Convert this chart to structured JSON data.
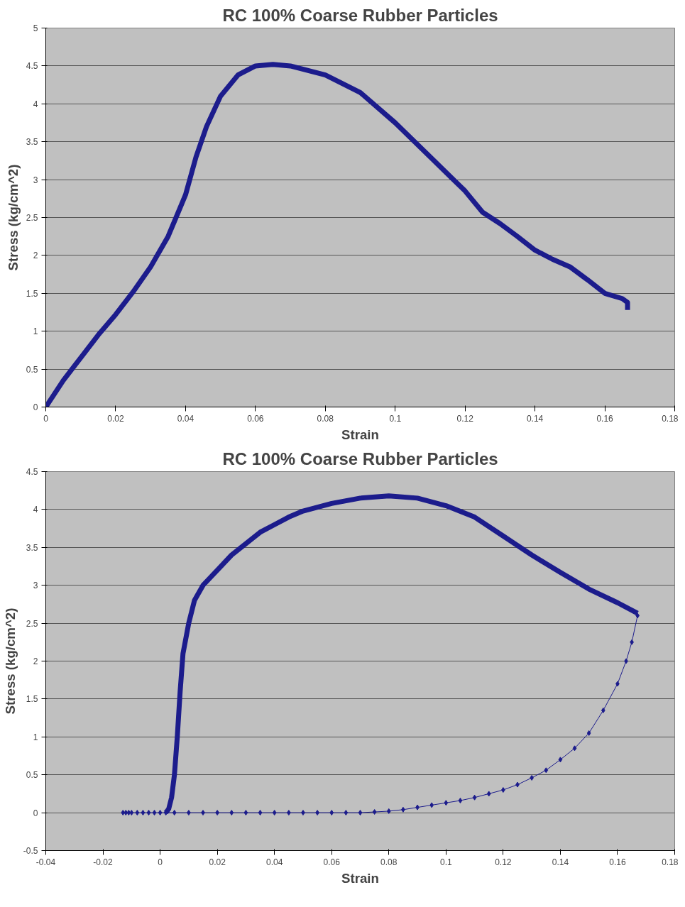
{
  "chart_data": [
    {
      "type": "line",
      "title": "RC 100% Coarse Rubber Particles",
      "xlabel": "Strain",
      "ylabel": "Stress (kg/cm^2)",
      "xlim": [
        0,
        0.18
      ],
      "ylim": [
        0,
        5
      ],
      "xticks": [
        0,
        0.02,
        0.04,
        0.06,
        0.08,
        0.1,
        0.12,
        0.14,
        0.16,
        0.18
      ],
      "yticks": [
        0,
        0.5,
        1,
        1.5,
        2,
        2.5,
        3,
        3.5,
        4,
        4.5,
        5
      ],
      "grid": "y",
      "marker": "none",
      "series": [
        {
          "color": "#1c1c8c",
          "x": [
            0,
            0.005,
            0.01,
            0.015,
            0.02,
            0.025,
            0.03,
            0.035,
            0.04,
            0.043,
            0.046,
            0.05,
            0.055,
            0.06,
            0.065,
            0.07,
            0.08,
            0.09,
            0.1,
            0.11,
            0.12,
            0.125,
            0.13,
            0.135,
            0.14,
            0.145,
            0.15,
            0.155,
            0.16,
            0.165,
            0.1665,
            0.1665
          ],
          "values": [
            0,
            0.35,
            0.65,
            0.95,
            1.22,
            1.52,
            1.85,
            2.25,
            2.8,
            3.3,
            3.7,
            4.1,
            4.38,
            4.5,
            4.52,
            4.5,
            4.38,
            4.15,
            3.75,
            3.3,
            2.85,
            2.57,
            2.42,
            2.25,
            2.07,
            1.95,
            1.85,
            1.68,
            1.5,
            1.43,
            1.38,
            1.28
          ]
        }
      ]
    },
    {
      "type": "line",
      "title": "RC 100% Coarse Rubber Particles",
      "xlabel": "Strain",
      "ylabel": "Stress (kg/cm^2)",
      "xlim": [
        -0.04,
        0.18
      ],
      "ylim": [
        -0.5,
        4.5
      ],
      "xticks": [
        -0.04,
        -0.02,
        0,
        0.02,
        0.04,
        0.06,
        0.08,
        0.1,
        0.12,
        0.14,
        0.16,
        0.18
      ],
      "yticks": [
        -0.5,
        0,
        0.5,
        1,
        1.5,
        2,
        2.5,
        3,
        3.5,
        4,
        4.5
      ],
      "grid": "y",
      "series": [
        {
          "color": "#1c1c8c",
          "marker": "none",
          "x": [
            0.002,
            0.003,
            0.004,
            0.005,
            0.006,
            0.007,
            0.008,
            0.01,
            0.012,
            0.015,
            0.02,
            0.025,
            0.03,
            0.035,
            0.04,
            0.045,
            0.05,
            0.06,
            0.07,
            0.08,
            0.09,
            0.1,
            0.11,
            0.12,
            0.13,
            0.14,
            0.15,
            0.16,
            0.167
          ],
          "values": [
            0,
            0.05,
            0.2,
            0.5,
            1.0,
            1.6,
            2.1,
            2.5,
            2.8,
            3.0,
            3.2,
            3.4,
            3.55,
            3.7,
            3.8,
            3.9,
            3.98,
            4.08,
            4.15,
            4.18,
            4.15,
            4.05,
            3.9,
            3.65,
            3.4,
            3.17,
            2.95,
            2.77,
            2.63
          ]
        },
        {
          "color": "#1c1c8c",
          "marker": "diamond",
          "x": [
            -0.013,
            -0.012,
            -0.011,
            -0.01,
            -0.008,
            -0.006,
            -0.004,
            -0.002,
            0,
            0.002,
            0.005,
            0.01,
            0.015,
            0.02,
            0.025,
            0.03,
            0.035,
            0.04,
            0.045,
            0.05,
            0.055,
            0.06,
            0.065,
            0.07,
            0.075,
            0.08,
            0.085,
            0.09,
            0.095,
            0.1,
            0.105,
            0.11,
            0.115,
            0.12,
            0.125,
            0.13,
            0.135,
            0.14,
            0.145,
            0.15,
            0.155,
            0.16,
            0.163,
            0.165,
            0.167
          ],
          "values": [
            0,
            0,
            0,
            0,
            0,
            0,
            0,
            0,
            0,
            0,
            0,
            0,
            0,
            0,
            0,
            0,
            0,
            0,
            0,
            0,
            0,
            0,
            0,
            0,
            0.01,
            0.02,
            0.04,
            0.07,
            0.1,
            0.13,
            0.16,
            0.2,
            0.25,
            0.3,
            0.37,
            0.46,
            0.56,
            0.7,
            0.85,
            1.05,
            1.35,
            1.7,
            2.0,
            2.25,
            2.6
          ]
        }
      ]
    }
  ]
}
